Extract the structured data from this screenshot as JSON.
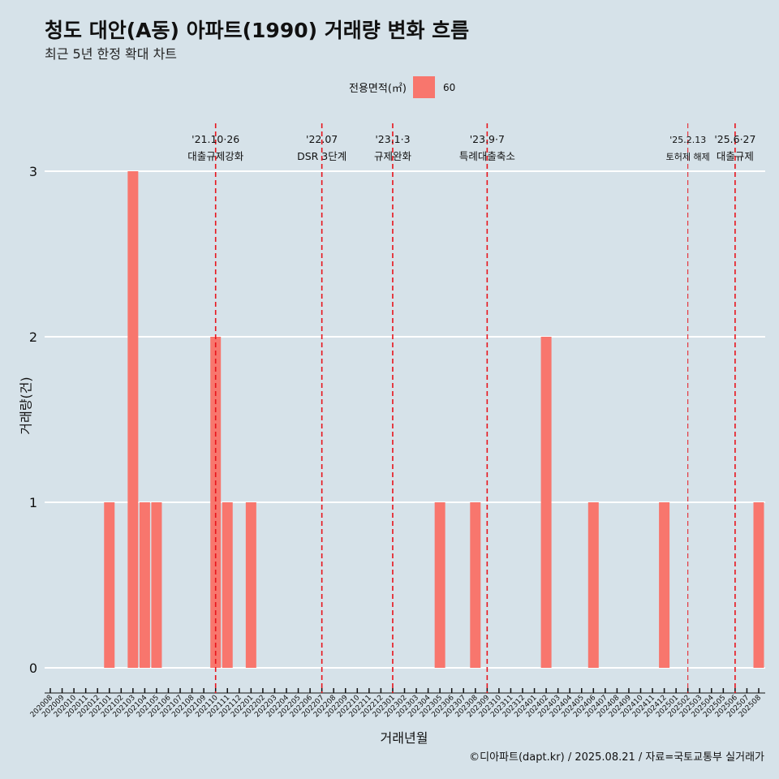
{
  "chart_data": {
    "type": "bar",
    "title": "청도 대안(A동) 아파트(1990) 거래량 변화 흐름",
    "subtitle": "최근 5년 한정 확대 차트",
    "xlabel": "거래년월",
    "ylabel": "거래량(건)",
    "caption": "©디아파트(dapt.kr) / 2025.08.21 / 자료=국토교통부 실거래가",
    "legend": {
      "title": "전용면적(㎡)",
      "label": "60",
      "color": "#f8766d",
      "position": "top"
    },
    "ylim": [
      0,
      3
    ],
    "yticks": [
      "0",
      "1",
      "2",
      "3"
    ],
    "categories": [
      "202008",
      "202009",
      "202010",
      "202011",
      "202012",
      "202101",
      "202102",
      "202103",
      "202104",
      "202105",
      "202106",
      "202107",
      "202108",
      "202109",
      "202110",
      "202111",
      "202112",
      "202201",
      "202202",
      "202203",
      "202204",
      "202205",
      "202206",
      "202207",
      "202208",
      "202209",
      "202210",
      "202211",
      "202212",
      "202301",
      "202302",
      "202303",
      "202304",
      "202305",
      "202306",
      "202307",
      "202308",
      "202309",
      "202310",
      "202311",
      "202312",
      "202401",
      "202402",
      "202403",
      "202404",
      "202405",
      "202406",
      "202407",
      "202408",
      "202409",
      "202410",
      "202411",
      "202412",
      "202501",
      "202502",
      "202503",
      "202504",
      "202505",
      "202506",
      "202507",
      "202508"
    ],
    "series": [
      {
        "name": "60",
        "values": [
          0,
          0,
          0,
          0,
          0,
          1,
          0,
          3,
          1,
          1,
          0,
          0,
          0,
          0,
          2,
          1,
          0,
          1,
          0,
          0,
          0,
          0,
          0,
          0,
          0,
          0,
          0,
          0,
          0,
          0,
          0,
          0,
          0,
          1,
          0,
          0,
          1,
          0,
          0,
          0,
          0,
          0,
          2,
          0,
          0,
          0,
          1,
          0,
          0,
          0,
          0,
          0,
          1,
          0,
          0,
          0,
          0,
          0,
          0,
          0,
          1
        ]
      }
    ],
    "annotations": [
      {
        "month": "202110",
        "line1": "'21.10·26",
        "line2": "대출규제강화"
      },
      {
        "month": "202207",
        "line1": "'22.07",
        "line2": "DSR 3단계"
      },
      {
        "month": "202301",
        "line1": "'23.1·3",
        "line2": "규제완화"
      },
      {
        "month": "202309",
        "line1": "'23.9·7",
        "line2": "특례대출축소"
      },
      {
        "month": "202502",
        "line1": "'25.2.13",
        "line2": "토허제 해제"
      },
      {
        "month": "202506",
        "line1": "'25.6·27",
        "line2": "대출규제"
      }
    ],
    "colors": {
      "bar": "#f8766d",
      "vline": "#e8141c",
      "grid": "#ffffff",
      "background": "#d6e2e9"
    }
  }
}
